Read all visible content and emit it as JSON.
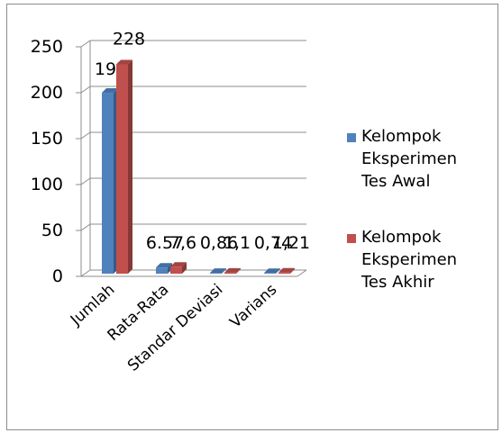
{
  "chart_data": {
    "type": "bar",
    "style": "3d-clustered",
    "categories": [
      "Jumlah",
      "Rata-Rata",
      "Standar Deviasi",
      "Varians"
    ],
    "series": [
      {
        "name": "Kelompok Eksperimen Tes Awal",
        "values": [
          197,
          6.57,
          0.86,
          0.74
        ],
        "labels": [
          "197",
          "6.57",
          "0,86",
          "0,74"
        ],
        "color": "#4F81BD"
      },
      {
        "name": "Kelompok Eksperimen Tes Akhir",
        "values": [
          228,
          7.6,
          1.1,
          1.21
        ],
        "labels": [
          "228",
          "7,6",
          "1,1",
          "1,21"
        ],
        "color": "#C0504D"
      }
    ],
    "yticks": [
      "0",
      "50",
      "100",
      "150",
      "200",
      "250"
    ],
    "ylim": [
      0,
      250
    ],
    "grid": true,
    "legend": "right",
    "title": "",
    "xlabel": "",
    "ylabel": ""
  }
}
